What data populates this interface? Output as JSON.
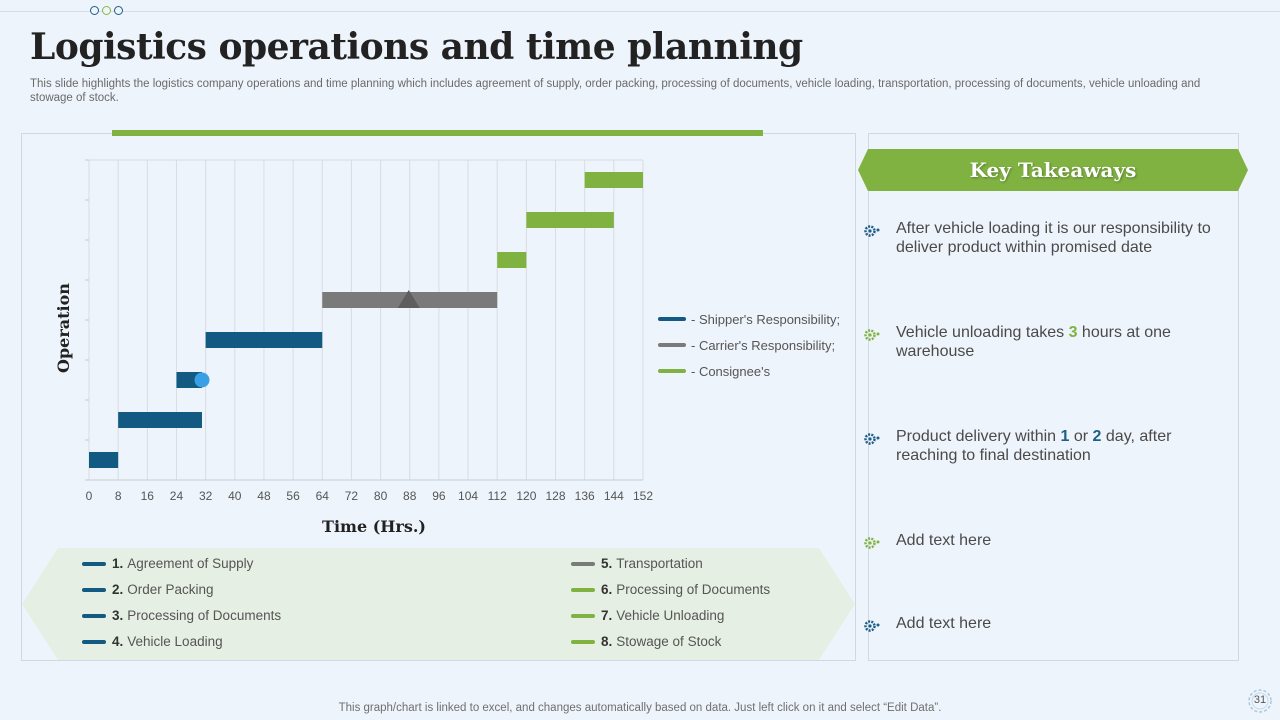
{
  "slide": {
    "title": "Logistics operations and time planning",
    "subtitle": "This slide highlights the logistics company operations and time planning which includes agreement of supply, order packing, processing of documents, vehicle loading, transportation, processing of documents, vehicle unloading and stowage of stock.",
    "footer_note": "This graph/chart is linked to excel,  and changes automatically based on data. Just left click on it and select “Edit Data”.",
    "page_number": "31"
  },
  "colors": {
    "shipper": "#135a82",
    "carrier": "#7a7a7a",
    "consignee": "#7fb241",
    "accent_blue_dot": "#3aa0e6"
  },
  "chart_data": {
    "type": "gantt",
    "xlabel": "Time (Hrs.)",
    "ylabel": "Operation",
    "xlim": [
      0,
      152
    ],
    "x_ticks": [
      0,
      8,
      16,
      24,
      32,
      40,
      48,
      56,
      64,
      72,
      80,
      88,
      96,
      104,
      112,
      120,
      128,
      136,
      144,
      152
    ],
    "grid": "vertical",
    "series_legend": [
      {
        "name": "- Shipper's Responsibility;",
        "group": "shipper"
      },
      {
        "name": "- Carrier's Responsibility;",
        "group": "carrier"
      },
      {
        "name": "- Consignee's",
        "group": "consignee"
      }
    ],
    "tasks": [
      {
        "num": "1.",
        "name": "Agreement of Supply",
        "start": 0,
        "end": 8,
        "group": "shipper"
      },
      {
        "num": "2.",
        "name": "Order Packing",
        "start": 8,
        "end": 31,
        "group": "shipper"
      },
      {
        "num": "3.",
        "name": "Processing of Documents",
        "start": 24,
        "end": 31,
        "group": "shipper",
        "marker": "circle"
      },
      {
        "num": "4.",
        "name": "Vehicle Loading",
        "start": 32,
        "end": 64,
        "group": "shipper"
      },
      {
        "num": "5.",
        "name": "Transportation",
        "start": 64,
        "end": 112,
        "group": "carrier",
        "marker": "triangle"
      },
      {
        "num": "6.",
        "name": "Processing of Documents",
        "start": 112,
        "end": 120,
        "group": "consignee"
      },
      {
        "num": "7.",
        "name": "Vehicle Unloading",
        "start": 120,
        "end": 144,
        "group": "consignee"
      },
      {
        "num": "8.",
        "name": "Stowage of Stock",
        "start": 136,
        "end": 152,
        "group": "consignee"
      }
    ]
  },
  "takeaways": {
    "title": "Key Takeaways",
    "items": [
      {
        "pre": "After vehicle loading it is our responsibility to deliver product within promised date",
        "v1": "",
        "mid": "",
        "v2": "",
        "post": "",
        "icon_color": "#1d5f86"
      },
      {
        "pre": "Vehicle unloading takes ",
        "v1": "3",
        "mid": " hours at one warehouse",
        "v2": "",
        "post": "",
        "icon_color": "#7fb241"
      },
      {
        "pre": "Product delivery within ",
        "v1": "1",
        "mid": " or ",
        "v2": "2",
        "post": " day, after reaching to final destination",
        "icon_color": "#1d5f86"
      },
      {
        "pre": "Add text here",
        "v1": "",
        "mid": "",
        "v2": "",
        "post": "",
        "icon_color": "#7fb241"
      },
      {
        "pre": "Add text here",
        "v1": "",
        "mid": "",
        "v2": "",
        "post": "",
        "icon_color": "#1d5f86"
      }
    ]
  }
}
